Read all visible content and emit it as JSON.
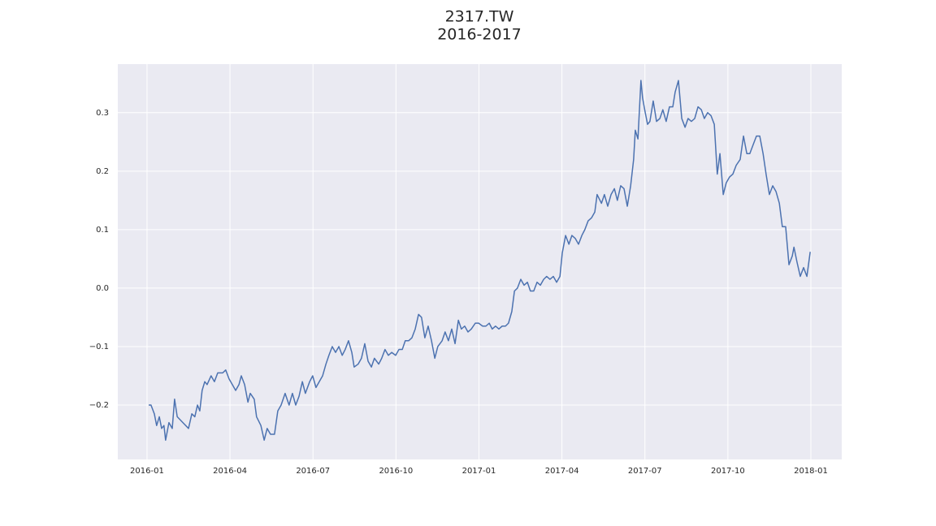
{
  "chart_data": {
    "type": "line",
    "title": "2317.TW",
    "subtitle": "2016-2017",
    "x": [
      2016.005,
      2016.012,
      2016.022,
      2016.029,
      2016.037,
      2016.044,
      2016.051,
      2016.056,
      2016.066,
      2016.076,
      2016.083,
      2016.091,
      2016.108,
      2016.125,
      2016.135,
      2016.144,
      2016.152,
      2016.159,
      2016.166,
      2016.174,
      2016.181,
      2016.193,
      2016.203,
      2016.213,
      2016.228,
      2016.237,
      2016.247,
      2016.257,
      2016.267,
      2016.277,
      2016.284,
      2016.294,
      2016.304,
      2016.311,
      2016.323,
      2016.33,
      2016.343,
      2016.353,
      2016.362,
      2016.372,
      2016.384,
      2016.394,
      2016.404,
      2016.416,
      2016.428,
      2016.438,
      2016.448,
      2016.458,
      2016.468,
      2016.477,
      2016.49,
      2016.499,
      2016.509,
      2016.519,
      2016.529,
      2016.539,
      2016.548,
      2016.558,
      2016.568,
      2016.578,
      2016.588,
      2016.597,
      2016.607,
      2016.617,
      2016.624,
      2016.636,
      2016.646,
      2016.656,
      2016.666,
      2016.676,
      2016.685,
      2016.698,
      2016.707,
      2016.717,
      2016.727,
      2016.737,
      2016.749,
      2016.759,
      2016.769,
      2016.778,
      2016.788,
      2016.798,
      2016.808,
      2016.818,
      2016.827,
      2016.837,
      2016.847,
      2016.857,
      2016.867,
      2016.876,
      2016.889,
      2016.898,
      2016.908,
      2016.918,
      2016.928,
      2016.938,
      2016.947,
      2016.957,
      2016.967,
      2016.977,
      2016.989,
      2016.999,
      2017.011,
      2017.021,
      2017.031,
      2017.04,
      2017.05,
      2017.06,
      2017.07,
      2017.08,
      2017.089,
      2017.099,
      2017.107,
      2017.116,
      2017.126,
      2017.136,
      2017.146,
      2017.155,
      2017.165,
      2017.175,
      2017.185,
      2017.195,
      2017.204,
      2017.214,
      2017.224,
      2017.234,
      2017.244,
      2017.251,
      2017.261,
      2017.271,
      2017.28,
      2017.29,
      2017.3,
      2017.31,
      2017.319,
      2017.329,
      2017.339,
      2017.349,
      2017.356,
      2017.369,
      2017.378,
      2017.388,
      2017.398,
      2017.408,
      2017.417,
      2017.427,
      2017.437,
      2017.447,
      2017.457,
      2017.466,
      2017.471,
      2017.479,
      2017.488,
      2017.493,
      2017.501,
      2017.508,
      2017.515,
      2017.525,
      2017.535,
      2017.545,
      2017.554,
      2017.564,
      2017.574,
      2017.584,
      2017.591,
      2017.601,
      2017.611,
      2017.621,
      2017.63,
      2017.64,
      2017.65,
      2017.66,
      2017.67,
      2017.679,
      2017.689,
      2017.699,
      2017.709,
      2017.718,
      2017.726,
      2017.736,
      2017.745,
      2017.755,
      2017.765,
      2017.775,
      2017.787,
      2017.797,
      2017.807,
      2017.816,
      2017.826,
      2017.836,
      2017.846,
      2017.856,
      2017.865,
      2017.875,
      2017.885,
      2017.895,
      2017.905,
      2017.914,
      2017.924,
      2017.934,
      2017.944,
      2017.949,
      2017.958,
      2017.968,
      2017.978,
      2017.988,
      2017.998
    ],
    "series": [
      {
        "color": "#4c72b0",
        "values": [
          -0.2,
          -0.2,
          -0.215,
          -0.235,
          -0.22,
          -0.24,
          -0.235,
          -0.26,
          -0.23,
          -0.24,
          -0.19,
          -0.22,
          -0.23,
          -0.24,
          -0.215,
          -0.22,
          -0.2,
          -0.21,
          -0.175,
          -0.16,
          -0.165,
          -0.15,
          -0.16,
          -0.145,
          -0.145,
          -0.14,
          -0.155,
          -0.165,
          -0.175,
          -0.165,
          -0.15,
          -0.165,
          -0.195,
          -0.18,
          -0.19,
          -0.22,
          -0.235,
          -0.26,
          -0.24,
          -0.25,
          -0.25,
          -0.21,
          -0.2,
          -0.18,
          -0.2,
          -0.18,
          -0.2,
          -0.185,
          -0.16,
          -0.18,
          -0.16,
          -0.15,
          -0.17,
          -0.16,
          -0.15,
          -0.13,
          -0.115,
          -0.1,
          -0.11,
          -0.1,
          -0.115,
          -0.105,
          -0.09,
          -0.11,
          -0.135,
          -0.13,
          -0.12,
          -0.095,
          -0.125,
          -0.135,
          -0.12,
          -0.13,
          -0.12,
          -0.105,
          -0.115,
          -0.11,
          -0.115,
          -0.105,
          -0.105,
          -0.09,
          -0.09,
          -0.085,
          -0.07,
          -0.045,
          -0.05,
          -0.085,
          -0.065,
          -0.09,
          -0.12,
          -0.1,
          -0.09,
          -0.075,
          -0.09,
          -0.07,
          -0.095,
          -0.055,
          -0.07,
          -0.065,
          -0.075,
          -0.07,
          -0.06,
          -0.06,
          -0.065,
          -0.065,
          -0.06,
          -0.07,
          -0.065,
          -0.07,
          -0.065,
          -0.065,
          -0.06,
          -0.04,
          -0.005,
          0,
          0.015,
          0.005,
          0.01,
          -0.005,
          -0.005,
          0.01,
          0.005,
          0.015,
          0.02,
          0.015,
          0.02,
          0.01,
          0.02,
          0.06,
          0.09,
          0.075,
          0.09,
          0.085,
          0.075,
          0.09,
          0.1,
          0.115,
          0.12,
          0.13,
          0.16,
          0.145,
          0.16,
          0.14,
          0.16,
          0.17,
          0.15,
          0.175,
          0.17,
          0.14,
          0.175,
          0.22,
          0.27,
          0.255,
          0.355,
          0.325,
          0.3,
          0.28,
          0.285,
          0.32,
          0.285,
          0.29,
          0.305,
          0.285,
          0.31,
          0.31,
          0.335,
          0.355,
          0.29,
          0.275,
          0.29,
          0.285,
          0.29,
          0.31,
          0.305,
          0.29,
          0.3,
          0.295,
          0.28,
          0.195,
          0.23,
          0.16,
          0.18,
          0.19,
          0.195,
          0.21,
          0.22,
          0.26,
          0.23,
          0.23,
          0.245,
          0.26,
          0.26,
          0.23,
          0.195,
          0.16,
          0.175,
          0.165,
          0.145,
          0.105,
          0.105,
          0.04,
          0.055,
          0.07,
          0.045,
          0.02,
          0.035,
          0.02,
          0.062
        ]
      }
    ],
    "xlim": [
      2015.912,
      2018.093
    ],
    "xticks": [
      {
        "value": 2016,
        "label": "2016-01"
      },
      {
        "value": 2016.25,
        "label": "2016-04"
      },
      {
        "value": 2016.5,
        "label": "2016-07"
      },
      {
        "value": 2016.75,
        "label": "2016-10"
      },
      {
        "value": 2017,
        "label": "2017-01"
      },
      {
        "value": 2017.25,
        "label": "2017-04"
      },
      {
        "value": 2017.5,
        "label": "2017-07"
      },
      {
        "value": 2017.75,
        "label": "2017-10"
      },
      {
        "value": 2018,
        "label": "2018-01"
      }
    ],
    "ylim": [
      -0.293,
      0.383
    ],
    "yticks": [
      {
        "value": -0.2,
        "label": "−0.2"
      },
      {
        "value": -0.1,
        "label": "−0.1"
      },
      {
        "value": 0,
        "label": "0.0"
      },
      0.1,
      0.2,
      0.3
    ],
    "grid": true
  }
}
